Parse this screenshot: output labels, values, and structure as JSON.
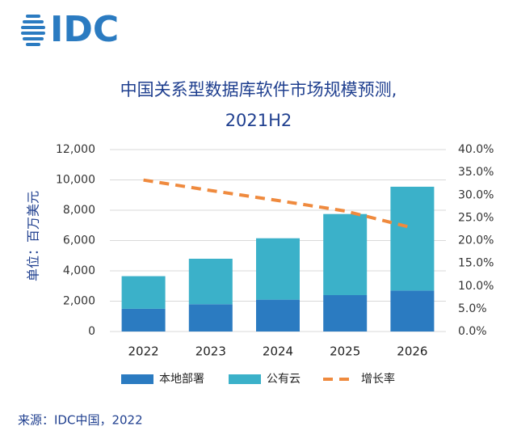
{
  "logo": "IDC",
  "source": "来源：IDC中国，2022",
  "chart_data": {
    "type": "bar",
    "stacked": true,
    "title": [
      "中国关系型数据库软件市场规模预测,",
      "2021H2"
    ],
    "y_label": "单位：百万美元",
    "categories": [
      "2022",
      "2023",
      "2024",
      "2025",
      "2026"
    ],
    "series": [
      {
        "name": "本地部署",
        "color": "#2b7bc1",
        "values": [
          1500,
          1800,
          2100,
          2400,
          2700
        ]
      },
      {
        "name": "公有云",
        "color": "#3bb1c9",
        "values": [
          2150,
          3000,
          4050,
          5350,
          6850
        ]
      },
      {
        "name": "增长率",
        "color": "#ef8a3e",
        "type": "line",
        "dashed": true,
        "axis": "y2",
        "values": [
          33.3,
          31.0,
          28.8,
          26.5,
          22.8
        ]
      }
    ],
    "ylim": [
      0,
      12000
    ],
    "yticks": [
      0,
      {
        "value": 2000,
        "label": "2,000"
      },
      {
        "value": 4000,
        "label": "4,000"
      },
      {
        "value": 6000,
        "label": "6,000"
      },
      {
        "value": 8000,
        "label": "8,000"
      },
      {
        "value": 10000,
        "label": "10,000"
      },
      {
        "value": 12000,
        "label": "12,000"
      }
    ],
    "y2lim": [
      0,
      40
    ],
    "y2ticks": [
      {
        "value": 0,
        "label": "0.0%"
      },
      {
        "value": 5,
        "label": "5.0%"
      },
      {
        "value": 10,
        "label": "10.0%"
      },
      {
        "value": 15,
        "label": "15.0%"
      },
      {
        "value": 20,
        "label": "20.0%"
      },
      {
        "value": 25,
        "label": "25.0%"
      },
      {
        "value": 30,
        "label": "30.0%"
      },
      {
        "value": 35,
        "label": "35.0%"
      },
      {
        "value": 40,
        "label": "40.0%"
      }
    ],
    "grid": true,
    "legend": "bottom"
  }
}
